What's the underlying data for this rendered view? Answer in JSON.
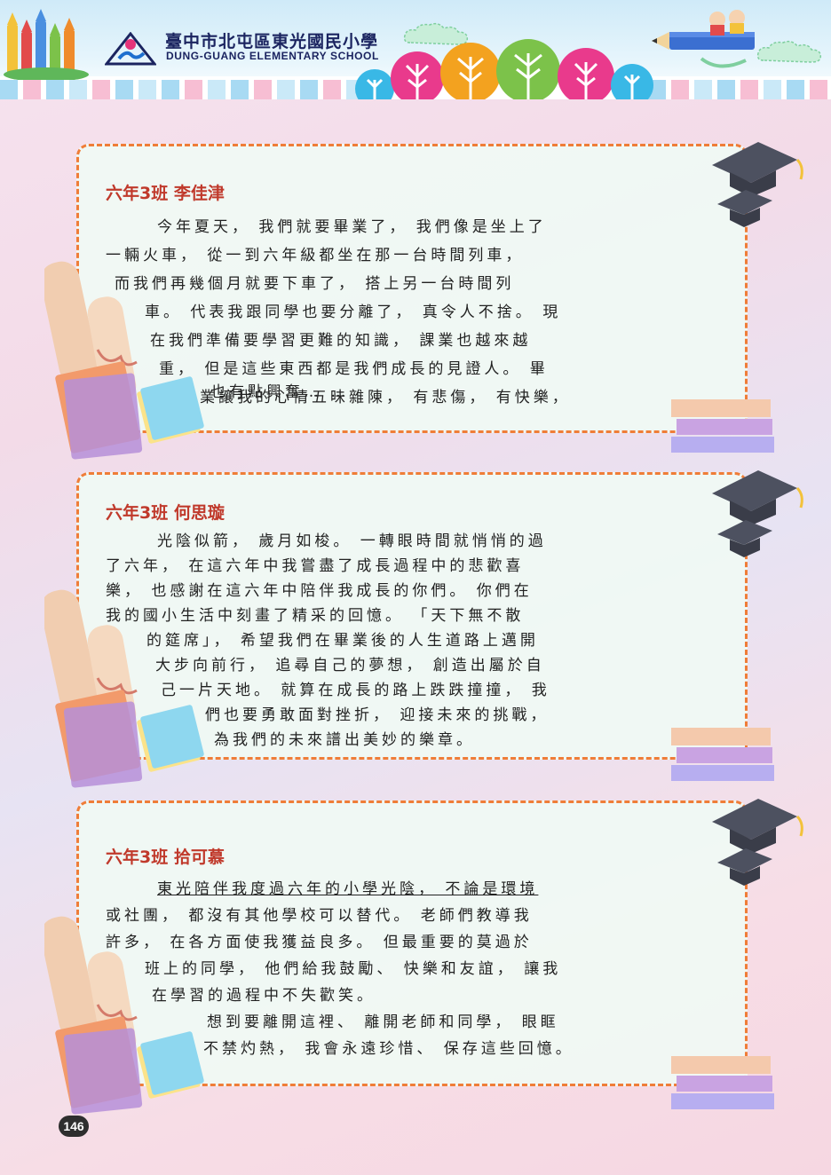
{
  "header": {
    "school_name_zh": "臺中市北屯區東光國民小學",
    "school_name_en": "DUNG-GUANG ELEMENTARY SCHOOL"
  },
  "essays": [
    {
      "title": "六年3班 李佳津",
      "lines": [
        "今年夏天， 我們就要畢業了， 我們像是坐上了",
        "一輛火車， 從一到六年級都坐在那一台時間列車，",
        "而我們再幾個月就要下車了， 搭上另一台時間列",
        "車。 代表我跟同學也要分離了， 真令人不捨。 現",
        "在我們準備要學習更難的知識， 課業也越來越",
        "重， 但是這些東西都是我們成長的見證人。 畢",
        "業讓我的心情五味雜陳， 有悲傷， 有快樂，",
        "也有點興奮… …"
      ]
    },
    {
      "title": "六年3班 何思璇",
      "lines": [
        "光陰似箭， 歲月如梭。 一轉眼時間就悄悄的過",
        "了六年， 在這六年中我嘗盡了成長過程中的悲歡喜",
        "樂， 也感謝在這六年中陪伴我成長的你們。 你們在",
        "我的國小生活中刻畫了精采的回憶。 「天下無不散",
        "的筵席」， 希望我們在畢業後的人生道路上邁開",
        "大步向前行， 追尋自己的夢想， 創造出屬於自",
        "己一片天地。 就算在成長的路上跌跌撞撞， 我",
        "們也要勇敢面對挫折， 迎接未來的挑戰，",
        "為我們的未來譜出美妙的樂章。"
      ]
    },
    {
      "title": "六年3班 拾可慕",
      "lines": [
        "東光陪伴我度過六年的小學光陰， 不論是環境",
        "或社團， 都沒有其他學校可以替代。 老師們教導我",
        "許多， 在各方面使我獲益良多。 但最重要的莫過於",
        "班上的同學， 他們給我鼓勵、 快樂和友誼， 讓我",
        "在學習的過程中不失歡笑。",
        "想到要離開這裡、 離開老師和同學， 眼眶",
        "不禁灼熱， 我會永遠珍惜、 保存這些回憶。"
      ]
    }
  ],
  "page_number": "146",
  "colors": {
    "border": "#ef7d38",
    "title": "#c0392b",
    "school_name": "#1b2460"
  }
}
